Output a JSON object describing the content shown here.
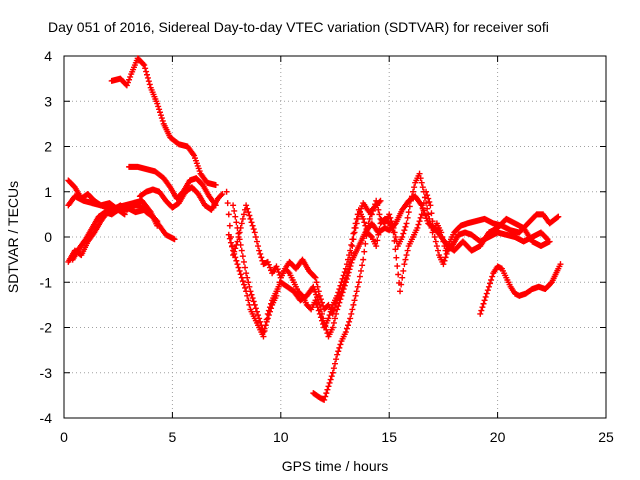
{
  "chart_data": {
    "type": "scatter",
    "title": "Day 051 of 2016, Sidereal Day-to-day VTEC variation (SDTVAR) for receiver sofi",
    "xlabel": "GPS time / hours",
    "ylabel": "SDTVAR / TECUs",
    "xlim": [
      0,
      25
    ],
    "ylim": [
      -4,
      4
    ],
    "x_ticks": [
      "0",
      "5",
      "10",
      "15",
      "20",
      "25"
    ],
    "y_ticks": [
      "-4",
      "-3",
      "-2",
      "-1",
      "0",
      "1",
      "2",
      "3",
      "4"
    ],
    "grid": true,
    "marker": "+",
    "series_color": "#ff0000",
    "series": [
      {
        "name": "trace-1",
        "points": [
          [
            2.2,
            3.45
          ],
          [
            2.6,
            3.5
          ],
          [
            2.9,
            3.35
          ],
          [
            3.1,
            3.6
          ],
          [
            3.4,
            3.95
          ],
          [
            3.7,
            3.8
          ],
          [
            4.0,
            3.3
          ],
          [
            4.3,
            2.95
          ],
          [
            4.6,
            2.5
          ],
          [
            4.9,
            2.2
          ],
          [
            5.3,
            2.05
          ],
          [
            5.7,
            2.0
          ],
          [
            6.0,
            1.8
          ],
          [
            6.3,
            1.4
          ],
          [
            6.6,
            1.2
          ],
          [
            7.0,
            1.15
          ]
        ]
      },
      {
        "name": "trace-2",
        "points": [
          [
            0.2,
            1.25
          ],
          [
            0.5,
            1.1
          ],
          [
            0.8,
            0.85
          ],
          [
            1.1,
            0.95
          ],
          [
            1.4,
            0.8
          ],
          [
            1.7,
            0.7
          ],
          [
            2.0,
            0.65
          ],
          [
            2.3,
            0.6
          ],
          [
            2.6,
            0.7
          ],
          [
            2.9,
            0.6
          ],
          [
            3.2,
            0.7
          ],
          [
            3.5,
            0.7
          ],
          [
            3.8,
            0.55
          ],
          [
            4.1,
            0.45
          ],
          [
            4.4,
            0.25
          ],
          [
            4.7,
            0.05
          ],
          [
            5.1,
            -0.05
          ]
        ]
      },
      {
        "name": "trace-3",
        "points": [
          [
            0.2,
            0.7
          ],
          [
            0.5,
            0.9
          ],
          [
            0.9,
            0.8
          ],
          [
            1.3,
            0.75
          ],
          [
            1.7,
            0.7
          ],
          [
            2.1,
            0.75
          ],
          [
            2.5,
            0.6
          ],
          [
            2.9,
            0.65
          ],
          [
            3.3,
            0.55
          ],
          [
            3.7,
            0.6
          ],
          [
            4.1,
            0.45
          ],
          [
            4.3,
            0.35
          ]
        ]
      },
      {
        "name": "trace-4",
        "points": [
          [
            0.2,
            -0.55
          ],
          [
            0.5,
            -0.3
          ],
          [
            0.8,
            -0.4
          ],
          [
            1.1,
            -0.1
          ],
          [
            1.4,
            0.1
          ],
          [
            1.7,
            0.35
          ],
          [
            2.0,
            0.55
          ],
          [
            2.4,
            0.65
          ],
          [
            2.8,
            0.7
          ],
          [
            3.2,
            0.75
          ],
          [
            3.6,
            0.8
          ],
          [
            4.0,
            0.55
          ],
          [
            4.3,
            0.25
          ]
        ]
      },
      {
        "name": "trace-5",
        "points": [
          [
            0.4,
            -0.5
          ],
          [
            0.7,
            -0.25
          ],
          [
            1.0,
            -0.05
          ],
          [
            1.3,
            0.2
          ],
          [
            1.6,
            0.45
          ],
          [
            1.9,
            0.55
          ],
          [
            2.2,
            0.5
          ],
          [
            2.5,
            0.6
          ],
          [
            2.8,
            0.5
          ]
        ]
      },
      {
        "name": "trace-6",
        "points": [
          [
            3.0,
            1.55
          ],
          [
            3.4,
            1.55
          ],
          [
            3.8,
            1.5
          ],
          [
            4.2,
            1.45
          ],
          [
            4.6,
            1.3
          ],
          [
            4.9,
            1.1
          ],
          [
            5.2,
            0.85
          ],
          [
            5.5,
            1.0
          ],
          [
            5.8,
            1.25
          ],
          [
            6.1,
            1.3
          ],
          [
            6.4,
            1.15
          ],
          [
            6.7,
            0.9
          ],
          [
            7.0,
            0.7
          ]
        ]
      },
      {
        "name": "trace-7",
        "points": [
          [
            3.5,
            0.9
          ],
          [
            3.8,
            1.0
          ],
          [
            4.1,
            1.05
          ],
          [
            4.4,
            1.0
          ],
          [
            4.7,
            0.8
          ],
          [
            5.0,
            0.65
          ],
          [
            5.3,
            0.75
          ],
          [
            5.6,
            1.0
          ],
          [
            5.9,
            1.1
          ],
          [
            6.2,
            0.95
          ],
          [
            6.5,
            0.7
          ],
          [
            6.8,
            0.6
          ],
          [
            7.1,
            0.85
          ],
          [
            7.3,
            0.95
          ]
        ]
      },
      {
        "name": "trace-8",
        "points": [
          [
            7.5,
            1.0
          ],
          [
            7.6,
            0.5
          ],
          [
            7.7,
            0.0
          ],
          [
            7.8,
            -0.4
          ],
          [
            8.0,
            -0.1
          ],
          [
            8.2,
            0.3
          ],
          [
            8.4,
            0.7
          ],
          [
            8.6,
            0.4
          ],
          [
            8.8,
            0.1
          ],
          [
            9.0,
            -0.3
          ],
          [
            9.2,
            -0.6
          ],
          [
            9.4,
            -0.55
          ],
          [
            9.6,
            -0.8
          ],
          [
            9.8,
            -0.65
          ],
          [
            10.0,
            -0.9
          ],
          [
            10.2,
            -0.7
          ],
          [
            10.4,
            -0.55
          ],
          [
            10.7,
            -0.7
          ],
          [
            11.0,
            -0.5
          ],
          [
            11.3,
            -0.75
          ],
          [
            11.6,
            -0.9
          ],
          [
            11.8,
            -1.3
          ],
          [
            12.0,
            -1.6
          ],
          [
            12.2,
            -1.5
          ],
          [
            12.4,
            -1.7
          ],
          [
            12.6,
            -1.4
          ],
          [
            12.8,
            -1.2
          ],
          [
            13.0,
            -0.9
          ],
          [
            13.2,
            -0.5
          ],
          [
            13.4,
            0.1
          ],
          [
            13.6,
            0.5
          ],
          [
            13.8,
            0.75
          ],
          [
            14.0,
            0.6
          ],
          [
            14.2,
            0.5
          ],
          [
            14.4,
            0.8
          ],
          [
            14.6,
            0.4
          ],
          [
            14.8,
            0.3
          ],
          [
            15.0,
            0.5
          ],
          [
            15.2,
            0.2
          ],
          [
            15.4,
            -0.2
          ],
          [
            15.6,
            0.0
          ],
          [
            15.8,
            0.3
          ],
          [
            16.0,
            0.8
          ],
          [
            16.2,
            1.2
          ],
          [
            16.4,
            1.4
          ],
          [
            16.6,
            1.0
          ],
          [
            16.8,
            0.5
          ],
          [
            17.0,
            0.1
          ],
          [
            17.2,
            0.3
          ],
          [
            17.4,
            0.1
          ],
          [
            17.6,
            -0.3
          ],
          [
            17.8,
            -0.1
          ],
          [
            18.0,
            0.1
          ],
          [
            18.3,
            0.25
          ],
          [
            18.6,
            0.3
          ],
          [
            19.0,
            0.35
          ],
          [
            19.4,
            0.4
          ],
          [
            19.8,
            0.3
          ],
          [
            20.2,
            0.25
          ],
          [
            20.6,
            0.15
          ],
          [
            21.0,
            0.1
          ],
          [
            21.4,
            0.3
          ],
          [
            21.8,
            0.5
          ],
          [
            22.1,
            0.5
          ],
          [
            22.4,
            0.3
          ],
          [
            22.8,
            0.45
          ]
        ]
      },
      {
        "name": "trace-9",
        "points": [
          [
            7.8,
            0.7
          ],
          [
            8.0,
            0.2
          ],
          [
            8.2,
            -0.3
          ],
          [
            8.4,
            -0.8
          ],
          [
            8.6,
            -1.2
          ],
          [
            8.8,
            -1.5
          ],
          [
            9.0,
            -1.8
          ],
          [
            9.2,
            -2.1
          ],
          [
            9.4,
            -1.8
          ],
          [
            9.6,
            -1.5
          ],
          [
            9.8,
            -1.3
          ],
          [
            10.0,
            -0.9
          ],
          [
            10.2,
            -0.7
          ],
          [
            10.4,
            -0.8
          ],
          [
            10.6,
            -1.0
          ],
          [
            10.8,
            -1.2
          ],
          [
            11.0,
            -1.3
          ],
          [
            11.2,
            -1.5
          ],
          [
            11.4,
            -1.6
          ],
          [
            11.6,
            -1.4
          ],
          [
            11.8,
            -1.7
          ],
          [
            12.0,
            -2.0
          ],
          [
            12.2,
            -1.8
          ],
          [
            12.4,
            -1.5
          ],
          [
            12.6,
            -1.3
          ],
          [
            12.8,
            -1.0
          ],
          [
            13.0,
            -0.7
          ],
          [
            13.2,
            -0.3
          ],
          [
            13.4,
            0.2
          ],
          [
            13.6,
            0.6
          ],
          [
            13.8,
            0.4
          ],
          [
            14.0,
            0.1
          ],
          [
            14.2,
            0.0
          ],
          [
            14.4,
            -0.2
          ],
          [
            14.6,
            0.3
          ],
          [
            14.8,
            0.4
          ],
          [
            15.0,
            0.3
          ],
          [
            15.2,
            0.1
          ],
          [
            15.5,
            -1.2
          ],
          [
            15.7,
            -0.6
          ],
          [
            15.9,
            -0.2
          ],
          [
            16.1,
            0.0
          ],
          [
            16.3,
            0.2
          ],
          [
            16.5,
            0.5
          ],
          [
            16.7,
            1.0
          ],
          [
            16.9,
            0.7
          ],
          [
            17.1,
            0.0
          ],
          [
            17.3,
            -0.4
          ],
          [
            17.5,
            -0.6
          ],
          [
            17.7,
            -0.3
          ],
          [
            17.9,
            -0.2
          ],
          [
            18.2,
            0.05
          ],
          [
            18.5,
            0.1
          ],
          [
            18.8,
            0.05
          ],
          [
            19.2,
            -0.1
          ],
          [
            19.6,
            0.0
          ],
          [
            20.0,
            0.1
          ],
          [
            20.4,
            0.05
          ],
          [
            20.8,
            0.0
          ],
          [
            21.2,
            -0.1
          ],
          [
            21.6,
            0.0
          ],
          [
            22.0,
            0.1
          ],
          [
            22.3,
            -0.05
          ]
        ]
      },
      {
        "name": "trace-10",
        "points": [
          [
            7.6,
            0.05
          ],
          [
            7.8,
            -0.3
          ],
          [
            8.0,
            -0.6
          ],
          [
            8.2,
            -0.9
          ],
          [
            8.4,
            -1.2
          ],
          [
            8.6,
            -1.6
          ],
          [
            8.8,
            -1.8
          ],
          [
            9.0,
            -2.0
          ],
          [
            9.2,
            -2.2
          ],
          [
            9.4,
            -1.7
          ],
          [
            9.6,
            -1.4
          ],
          [
            9.8,
            -1.2
          ],
          [
            10.0,
            -1.0
          ],
          [
            10.3,
            -1.1
          ],
          [
            10.6,
            -1.2
          ],
          [
            10.9,
            -1.4
          ],
          [
            11.2,
            -1.3
          ],
          [
            11.5,
            -1.1
          ],
          [
            11.8,
            -1.5
          ],
          [
            12.0,
            -1.9
          ],
          [
            12.2,
            -2.2
          ],
          [
            12.4,
            -2.0
          ],
          [
            12.6,
            -1.6
          ],
          [
            12.8,
            -1.3
          ],
          [
            13.0,
            -1.0
          ],
          [
            13.3,
            -0.5
          ],
          [
            13.6,
            -0.2
          ],
          [
            13.9,
            0.1
          ],
          [
            14.2,
            0.3
          ],
          [
            14.5,
            0.1
          ],
          [
            14.8,
            0.2
          ],
          [
            15.0,
            0.15
          ],
          [
            15.3,
            0.3
          ],
          [
            15.6,
            0.6
          ],
          [
            15.9,
            0.8
          ],
          [
            16.2,
            0.9
          ],
          [
            16.5,
            0.7
          ],
          [
            16.8,
            0.3
          ],
          [
            17.1,
            0.2
          ],
          [
            17.4,
            0.0
          ],
          [
            17.7,
            -0.2
          ],
          [
            18.0,
            -0.3
          ],
          [
            18.4,
            -0.1
          ],
          [
            18.8,
            -0.3
          ],
          [
            19.2,
            -0.2
          ],
          [
            19.6,
            0.1
          ],
          [
            20.0,
            0.2
          ],
          [
            20.4,
            0.4
          ],
          [
            20.8,
            0.3
          ],
          [
            21.2,
            0.2
          ],
          [
            21.6,
            -0.1
          ],
          [
            22.0,
            -0.2
          ],
          [
            22.4,
            -0.1
          ]
        ]
      },
      {
        "name": "trace-11",
        "points": [
          [
            11.5,
            -3.45
          ],
          [
            11.8,
            -3.55
          ],
          [
            12.0,
            -3.6
          ],
          [
            12.2,
            -3.3
          ],
          [
            12.4,
            -3.0
          ],
          [
            12.6,
            -2.6
          ],
          [
            12.8,
            -2.3
          ],
          [
            13.0,
            -2.1
          ],
          [
            13.2,
            -1.8
          ],
          [
            13.4,
            -1.4
          ],
          [
            13.6,
            -1.0
          ],
          [
            13.8,
            -0.5
          ],
          [
            14.0,
            0.2
          ],
          [
            14.2,
            0.6
          ],
          [
            14.4,
            0.7
          ],
          [
            14.6,
            0.8
          ]
        ]
      },
      {
        "name": "trace-12",
        "points": [
          [
            19.2,
            -1.7
          ],
          [
            19.4,
            -1.4
          ],
          [
            19.6,
            -1.1
          ],
          [
            19.8,
            -0.8
          ],
          [
            20.0,
            -0.65
          ],
          [
            20.2,
            -0.7
          ],
          [
            20.4,
            -0.9
          ],
          [
            20.6,
            -1.1
          ],
          [
            20.8,
            -1.25
          ],
          [
            21.0,
            -1.3
          ],
          [
            21.3,
            -1.25
          ],
          [
            21.6,
            -1.15
          ],
          [
            21.9,
            -1.1
          ],
          [
            22.2,
            -1.15
          ],
          [
            22.5,
            -1.0
          ],
          [
            22.8,
            -0.7
          ],
          [
            22.9,
            -0.6
          ]
        ]
      }
    ]
  }
}
